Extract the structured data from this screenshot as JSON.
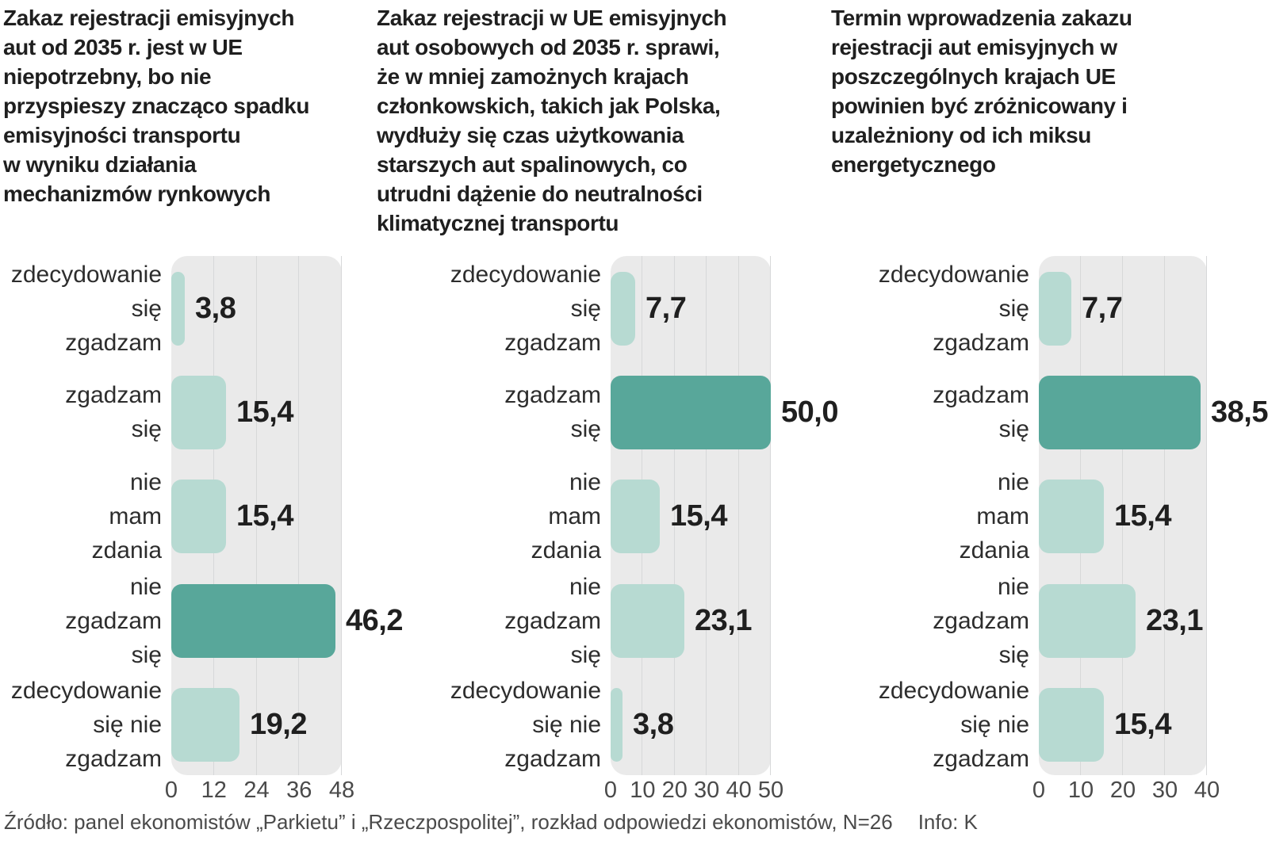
{
  "page": {
    "footer_source": "Źródło: panel ekonomistów „Parkietu” i  „Rzeczpospolitej”, rozkład odpowiedzi ekonomistów, N=26",
    "footer_info": "Info: K"
  },
  "colors": {
    "bar_light": "#b7dad2",
    "bar_dark": "#58a79a",
    "plot_bg": "#eaeaea",
    "gridline": "#d7d8d9",
    "title_text": "#1f1f1f",
    "label_text": "#2d2d2d",
    "value_text": "#1f1f1f",
    "tick_text": "#4a4a4a"
  },
  "chart_data": [
    {
      "type": "bar",
      "orientation": "horizontal",
      "title": [
        "Zakaz rejestracji emisyjnych",
        "aut od 2035 r. jest w UE",
        "niepotrzebny, bo nie",
        "przyspieszy znacząco spadku",
        "emisyjności transportu",
        "w wyniku działania",
        "mechanizmów rynkowych"
      ],
      "categories": [
        [
          "zdecydowanie",
          "się",
          "zgadzam"
        ],
        [
          "zgadzam",
          "się"
        ],
        [
          "nie",
          "mam",
          "zdania"
        ],
        [
          "nie",
          "zgadzam",
          "się"
        ],
        [
          "zdecydowanie",
          "się nie",
          "zgadzam"
        ]
      ],
      "values": [
        3.8,
        15.4,
        15.4,
        46.2,
        19.2
      ],
      "value_labels": [
        "3,8",
        "15,4",
        "15,4",
        "46,2",
        "19,2"
      ],
      "highlight_index": 3,
      "xticks": [
        0,
        12,
        24,
        36,
        48
      ],
      "xmax": 48,
      "grid": true,
      "legend": "none"
    },
    {
      "type": "bar",
      "orientation": "horizontal",
      "title": [
        "Zakaz rejestracji w UE emisyjnych",
        "aut osobowych od 2035 r. sprawi,",
        "że w mniej zamożnych krajach",
        "członkowskich, takich jak Polska,",
        "wydłuży się czas użytkowania",
        "starszych aut spalinowych, co",
        "utrudni dążenie do neutralności",
        "klimatycznej transportu"
      ],
      "categories": [
        [
          "zdecydowanie",
          "się",
          "zgadzam"
        ],
        [
          "zgadzam",
          "się"
        ],
        [
          "nie",
          "mam",
          "zdania"
        ],
        [
          "nie",
          "zgadzam",
          "się"
        ],
        [
          "zdecydowanie",
          "się nie",
          "zgadzam"
        ]
      ],
      "values": [
        7.7,
        50.0,
        15.4,
        23.1,
        3.8
      ],
      "value_labels": [
        "7,7",
        "50,0",
        "15,4",
        "23,1",
        "3,8"
      ],
      "highlight_index": 1,
      "xticks": [
        0,
        10,
        20,
        30,
        40,
        50
      ],
      "xmax": 50,
      "grid": true,
      "legend": "none"
    },
    {
      "type": "bar",
      "orientation": "horizontal",
      "title": [
        "Termin wprowadzenia zakazu",
        "rejestracji aut emisyjnych w",
        "poszczególnych krajach UE",
        "powinien być zróżnicowany i",
        "uzależniony od ich miksu",
        "energetycznego"
      ],
      "categories": [
        [
          "zdecydowanie",
          "się",
          "zgadzam"
        ],
        [
          "zgadzam",
          "się"
        ],
        [
          "nie",
          "mam",
          "zdania"
        ],
        [
          "nie",
          "zgadzam",
          "się"
        ],
        [
          "zdecydowanie",
          "się nie",
          "zgadzam"
        ]
      ],
      "values": [
        7.7,
        38.5,
        15.4,
        23.1,
        15.4
      ],
      "value_labels": [
        "7,7",
        "38,5",
        "15,4",
        "23,1",
        "15,4"
      ],
      "highlight_index": 1,
      "xticks": [
        0,
        10,
        20,
        30,
        40
      ],
      "xmax": 40,
      "grid": true,
      "legend": "none"
    }
  ]
}
